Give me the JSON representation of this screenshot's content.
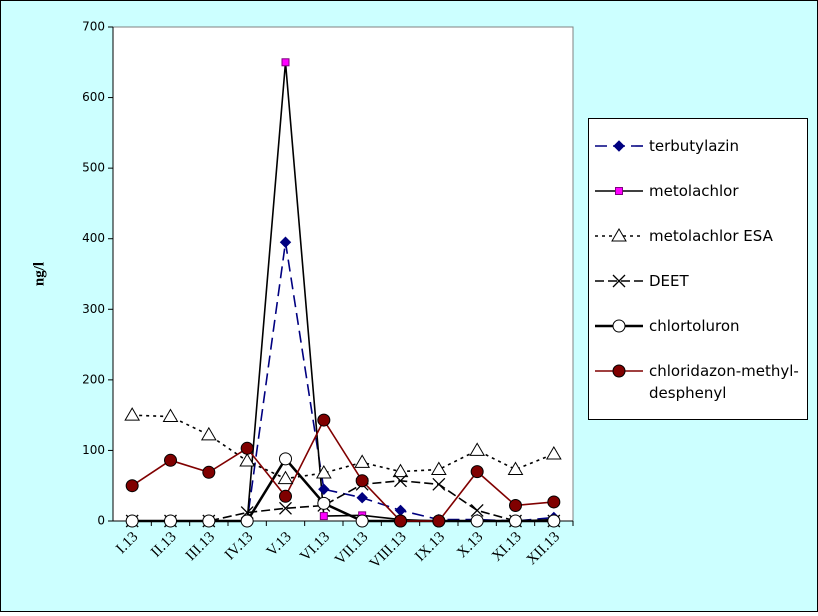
{
  "chart_data": {
    "type": "line",
    "y_label": "ng/l",
    "categories": [
      "I.13",
      "II.13",
      "III.13",
      "IV.13",
      "V.13",
      "VI.13",
      "VII.13",
      "VIII.13",
      "IX.13",
      "X.13",
      "XI.13",
      "XII.13"
    ],
    "ylim": [
      0,
      700
    ],
    "yticks": [
      0,
      100,
      200,
      300,
      400,
      500,
      600,
      700
    ],
    "grid": false,
    "series": [
      {
        "name": "terbutylazin",
        "color": "#000080",
        "marker": "diamond",
        "dash": "12,6",
        "values": [
          0,
          0,
          0,
          0,
          395,
          45,
          33,
          15,
          2,
          2,
          0,
          5
        ]
      },
      {
        "name": "metolachlor",
        "color": "#ff00ff",
        "marker": "square",
        "dash": "none",
        "values": [
          0,
          0,
          0,
          0,
          650,
          7,
          8,
          2,
          0,
          0,
          0,
          2
        ]
      },
      {
        "name": "metolachlor ESA",
        "color": "#000000",
        "marker": "triangle",
        "dash": "3,4",
        "values": [
          150,
          148,
          122,
          85,
          60,
          68,
          83,
          70,
          73,
          100,
          73,
          95
        ]
      },
      {
        "name": "DEET",
        "color": "#000000",
        "marker": "x",
        "dash": "9,4",
        "values": [
          0,
          0,
          0,
          12,
          18,
          22,
          52,
          57,
          52,
          15,
          0,
          0
        ]
      },
      {
        "name": "chlortoluron",
        "color": "#000000",
        "marker": "circle",
        "dash": "none",
        "values": [
          0,
          0,
          0,
          0,
          88,
          25,
          0,
          0,
          0,
          0,
          0,
          0
        ]
      },
      {
        "name": "chloridazon-methyl-desphenyl",
        "color": "#800000",
        "marker": "dot",
        "dash": "none",
        "values": [
          50,
          86,
          69,
          103,
          35,
          143,
          57,
          0,
          0,
          70,
          22,
          27
        ]
      }
    ]
  }
}
